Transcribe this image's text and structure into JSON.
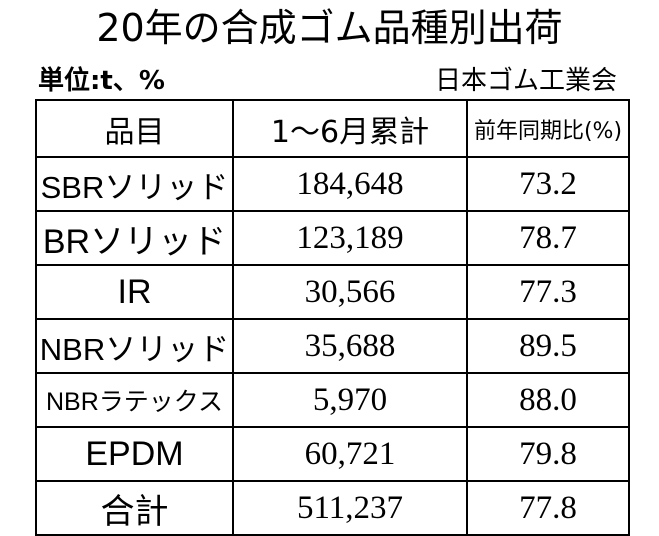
{
  "title": "20年の合成ゴム品種別出荷",
  "unit_label": "単位:t、%",
  "source": "日本ゴム工業会",
  "table": {
    "headers": [
      "品目",
      "1〜6月累計",
      "前年同期比(%)"
    ],
    "rows": [
      {
        "item": "SBRソリッド",
        "cumulative": "184,648",
        "yoy": "73.2"
      },
      {
        "item": "BRソリッド",
        "cumulative": "123,189",
        "yoy": "78.7"
      },
      {
        "item": "IR",
        "cumulative": "30,566",
        "yoy": "77.3"
      },
      {
        "item": "NBRソリッド",
        "cumulative": "35,688",
        "yoy": "89.5"
      },
      {
        "item": "NBRラテックス",
        "cumulative": "5,970",
        "yoy": "88.0"
      },
      {
        "item": "EPDM",
        "cumulative": "60,721",
        "yoy": "79.8"
      },
      {
        "item": "合計",
        "cumulative": "511,237",
        "yoy": "77.8"
      }
    ]
  }
}
